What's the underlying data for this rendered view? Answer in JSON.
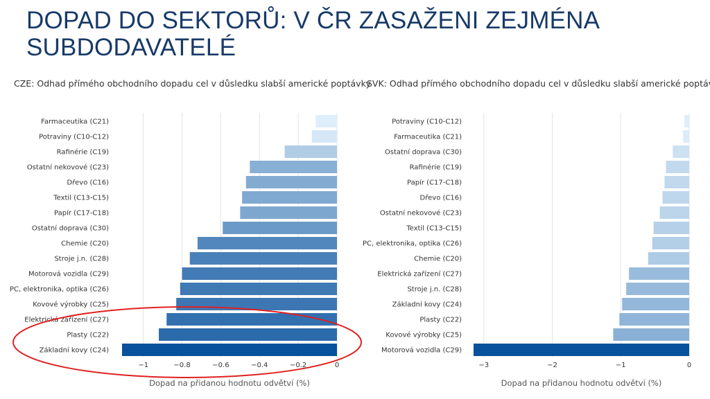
{
  "title": {
    "line1": "DOPAD DO SEKTORŮ: V ČR ZASAŽENI ZEJMÉNA",
    "line2": "SUBDODAVATELÉ"
  },
  "colors": {
    "title": "#173a68",
    "bar_light": "#deeefa",
    "bar_dark": "#08519c",
    "highlight_ellipse": "#e02020"
  },
  "chart_data": [
    {
      "type": "bar",
      "orientation": "horizontal",
      "title": "CZE: Odhad přímého obchodního dopadu cel v důsledku slabší americké poptávky",
      "xlabel": "Dopad na přidanou hodnotu odvětví (%)",
      "xlim": [
        -1.11,
        0
      ],
      "xticks": [
        -1,
        -0.8,
        -0.6,
        -0.4,
        -0.2,
        0
      ],
      "xtick_labels": [
        "−1",
        "−0.8",
        "−0.6",
        "−0.4",
        "−0.2",
        "0"
      ],
      "grid": "vertical",
      "categories": [
        "Farmaceutika (C21)",
        "Potraviny (C10-C12)",
        "Rafinérie (C19)",
        "Ostatní nekovové (C23)",
        "Dřevo (C16)",
        "Textil (C13-C15)",
        "Papír (C17-C18)",
        "Ostatní doprava (C30)",
        "Chemie (C20)",
        "Stroje j.n. (C28)",
        "Motorová vozidla (C29)",
        "PC, elektronika, optika (C26)",
        "Kovové výrobky (C25)",
        "Elektrická zařízení (C27)",
        "Plasty (C22)",
        "Základní kovy (C24)"
      ],
      "values": [
        -0.11,
        -0.13,
        -0.27,
        -0.45,
        -0.47,
        -0.49,
        -0.5,
        -0.59,
        -0.72,
        -0.76,
        -0.8,
        -0.81,
        -0.83,
        -0.88,
        -0.92,
        -1.11
      ],
      "annotation": "red ellipse around Plasty (C22) and Základní kovy (C24)"
    },
    {
      "type": "bar",
      "orientation": "horizontal",
      "title": "SVK: Odhad přímého obchodního dopadu cel v důsledku slabší americké poptávky",
      "xlabel": "Dopad na přidanou hodnotu odvětví (%)",
      "xlim": [
        -3.15,
        0
      ],
      "xticks": [
        -3,
        -2,
        -1,
        0
      ],
      "xtick_labels": [
        "−3",
        "−2",
        "−1",
        "0"
      ],
      "grid": "vertical",
      "categories": [
        "Potraviny (C10-C12)",
        "Farmaceutika (C21)",
        "Ostatní doprava (C30)",
        "Rafinérie (C19)",
        "Papír (C17-C18)",
        "Dřevo (C16)",
        "Ostatní nekovové (C23)",
        "Textil (C13-C15)",
        "PC, elektronika, optika (C26)",
        "Chemie (C20)",
        "Elektrická zařízení (C27)",
        "Stroje j.n. (C28)",
        "Základní kovy (C24)",
        "Plasty (C22)",
        "Kovové výrobky (C25)",
        "Motorová vozidla (C29)"
      ],
      "values": [
        -0.07,
        -0.09,
        -0.24,
        -0.34,
        -0.36,
        -0.39,
        -0.43,
        -0.52,
        -0.54,
        -0.6,
        -0.88,
        -0.92,
        -0.98,
        -1.02,
        -1.11,
        -3.18
      ]
    }
  ]
}
